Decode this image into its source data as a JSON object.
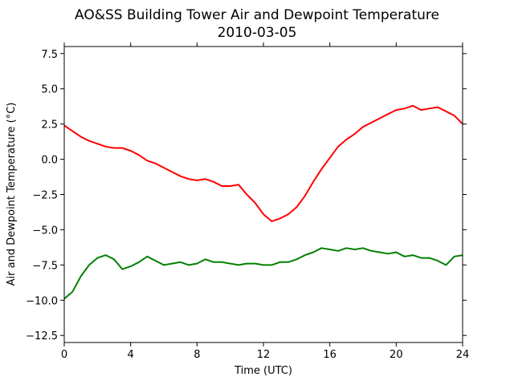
{
  "chart_data": {
    "type": "line",
    "title": "AO&SS Building Tower Air and Dewpoint Temperature",
    "subtitle": "2010-03-05",
    "xlabel": "Time (UTC)",
    "ylabel": "Air and Dewpoint Temperature (°C)",
    "xlim": [
      0,
      24
    ],
    "ylim": [
      -13,
      8
    ],
    "xticks": [
      0,
      4,
      8,
      12,
      16,
      20,
      24
    ],
    "xtick_labels": [
      "0",
      "4",
      "8",
      "12",
      "16",
      "20",
      "24"
    ],
    "yticks": [
      -12.5,
      -10.0,
      -7.5,
      -5.0,
      -2.5,
      0.0,
      2.5,
      5.0,
      7.5
    ],
    "ytick_labels": [
      "−12.5",
      "−10.0",
      "−7.5",
      "−5.0",
      "−2.5",
      "0.0",
      "2.5",
      "5.0",
      "7.5"
    ],
    "grid": false,
    "legend": "none",
    "series": [
      {
        "color": "#ff0000",
        "x": [
          0,
          0.5,
          1,
          1.5,
          2,
          2.5,
          3,
          3.5,
          4,
          4.5,
          5,
          5.5,
          6,
          6.5,
          7,
          7.5,
          8,
          8.5,
          9,
          9.5,
          10,
          10.5,
          11,
          11.5,
          12,
          12.5,
          13,
          13.5,
          14,
          14.5,
          15,
          15.5,
          16,
          16.5,
          17,
          17.5,
          18,
          18.5,
          19,
          19.5,
          20,
          20.5,
          21,
          21.5,
          22,
          22.5,
          23,
          23.5,
          24
        ],
        "values": [
          2.4,
          2.0,
          1.6,
          1.3,
          1.1,
          0.9,
          0.8,
          0.8,
          0.6,
          0.3,
          -0.1,
          -0.3,
          -0.6,
          -0.9,
          -1.2,
          -1.4,
          -1.5,
          -1.4,
          -1.6,
          -1.9,
          -1.9,
          -1.8,
          -2.5,
          -3.1,
          -3.9,
          -4.4,
          -4.2,
          -3.9,
          -3.4,
          -2.6,
          -1.6,
          -0.7,
          0.1,
          0.9,
          1.4,
          1.8,
          2.3,
          2.6,
          2.9,
          3.2,
          3.5,
          3.6,
          3.8,
          3.5,
          3.6,
          3.7,
          3.4,
          3.1,
          2.5
        ]
      },
      {
        "color": "#008000",
        "x": [
          0,
          0.5,
          1,
          1.5,
          2,
          2.5,
          3,
          3.5,
          4,
          4.5,
          5,
          5.5,
          6,
          6.5,
          7,
          7.5,
          8,
          8.5,
          9,
          9.5,
          10,
          10.5,
          11,
          11.5,
          12,
          12.5,
          13,
          13.5,
          14,
          14.5,
          15,
          15.5,
          16,
          16.5,
          17,
          17.5,
          18,
          18.5,
          19,
          19.5,
          20,
          20.5,
          21,
          21.5,
          22,
          22.5,
          23,
          23.5,
          24
        ],
        "values": [
          -9.9,
          -9.4,
          -8.3,
          -7.5,
          -7.0,
          -6.8,
          -7.1,
          -7.8,
          -7.6,
          -7.3,
          -6.9,
          -7.2,
          -7.5,
          -7.4,
          -7.3,
          -7.5,
          -7.4,
          -7.1,
          -7.3,
          -7.3,
          -7.4,
          -7.5,
          -7.4,
          -7.4,
          -7.5,
          -7.5,
          -7.3,
          -7.3,
          -7.1,
          -6.8,
          -6.6,
          -6.3,
          -6.4,
          -6.5,
          -6.3,
          -6.4,
          -6.3,
          -6.5,
          -6.6,
          -6.7,
          -6.6,
          -6.9,
          -6.8,
          -7.0,
          -7.0,
          -7.2,
          -7.5,
          -6.9,
          -6.8
        ]
      }
    ]
  }
}
